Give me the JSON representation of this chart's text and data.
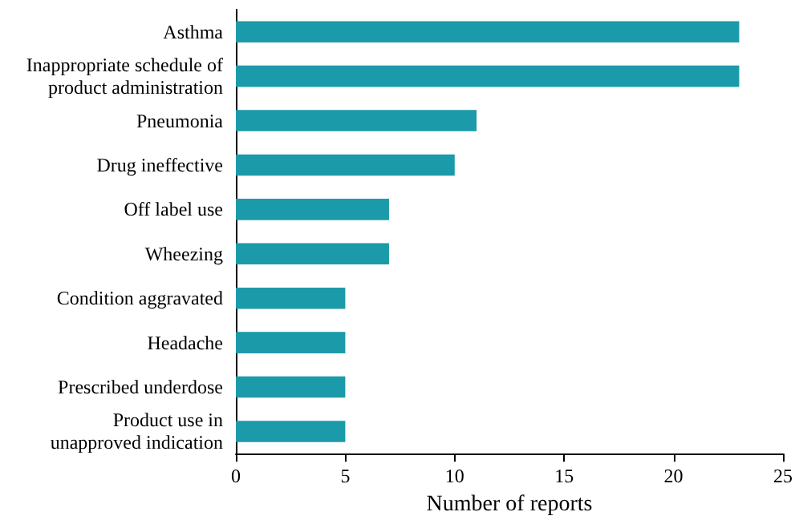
{
  "chart_data": {
    "type": "bar",
    "orientation": "horizontal",
    "xlabel": "Number of reports",
    "categories": [
      "Asthma",
      "Inappropriate schedule of\nproduct administration",
      "Pneumonia",
      "Drug ineffective",
      "Off label use",
      "Wheezing",
      "Condition aggravated",
      "Headache",
      "Prescribed underdose",
      "Product use in\nunapproved indication"
    ],
    "values": [
      23,
      23,
      11,
      10,
      7,
      7,
      5,
      5,
      5,
      5
    ],
    "color": "#1b9aaa",
    "xlim": [
      0,
      25
    ],
    "xticks": [
      0,
      5,
      10,
      15,
      20,
      25
    ],
    "grid": false
  }
}
